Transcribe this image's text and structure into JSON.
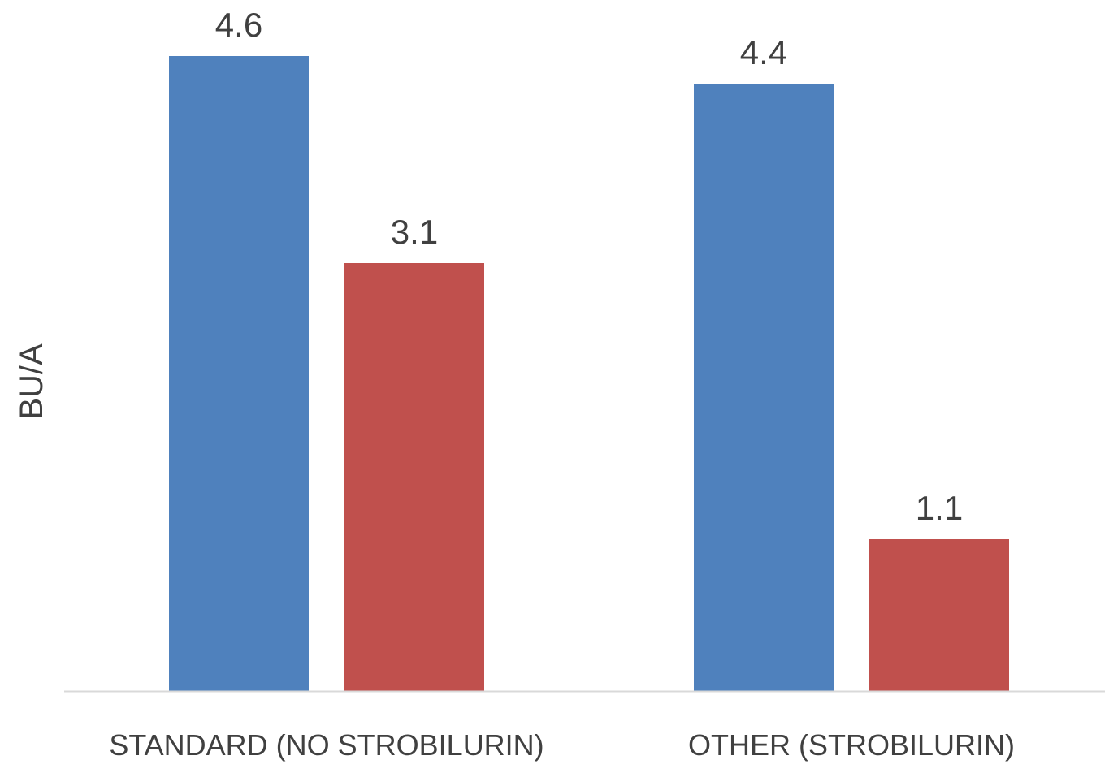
{
  "chart_data": {
    "type": "bar",
    "title": "",
    "xlabel": "",
    "ylabel": "BU/A",
    "categories": [
      "STANDARD (NO STROBILURIN)",
      "OTHER (STROBILURIN)"
    ],
    "series": [
      {
        "values": [
          4.6,
          4.4
        ],
        "color": "#4f81bd"
      },
      {
        "values": [
          3.1,
          1.1
        ],
        "color": "#c0504d"
      }
    ],
    "data_labels": [
      [
        "4.6",
        "4.4"
      ],
      [
        "3.1",
        "1.1"
      ]
    ],
    "ylim": [
      0,
      5
    ],
    "grid": false,
    "legend": "none"
  }
}
